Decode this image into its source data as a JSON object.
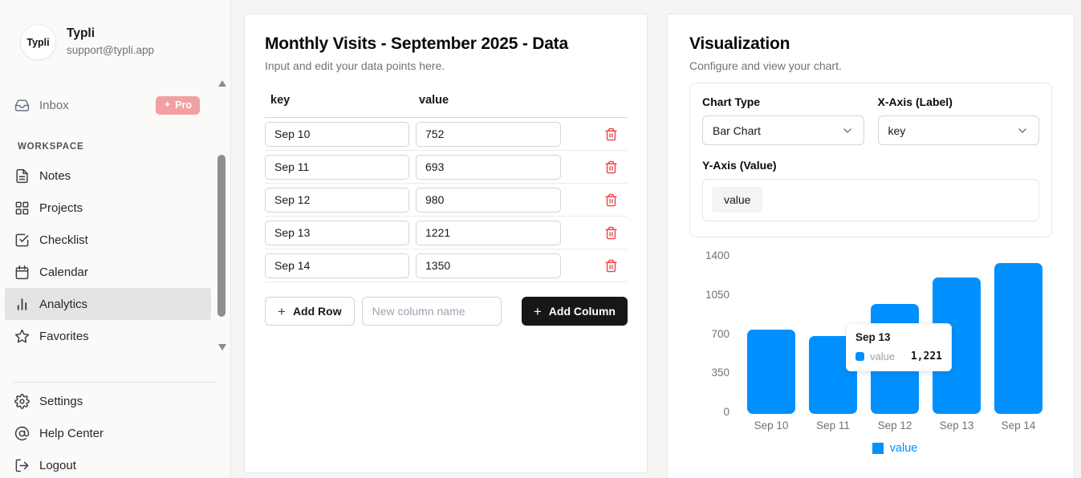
{
  "sidebar": {
    "user": {
      "avatar_text": "Typli",
      "name": "Typli",
      "email": "support@typli.app"
    },
    "inbox": {
      "label": "Inbox",
      "badge": "Pro",
      "badge_icon": "sparkles-icon",
      "badge_color": "#f1a1a1"
    },
    "section_label": "WORKSPACE",
    "items": [
      {
        "label": "Notes",
        "icon": "file-text-icon",
        "active": false
      },
      {
        "label": "Projects",
        "icon": "grid-icon",
        "active": false
      },
      {
        "label": "Checklist",
        "icon": "check-square-icon",
        "active": false
      },
      {
        "label": "Calendar",
        "icon": "calendar-icon",
        "active": false
      },
      {
        "label": "Analytics",
        "icon": "bar-chart-icon",
        "active": true
      },
      {
        "label": "Favorites",
        "icon": "star-icon",
        "active": false
      }
    ],
    "footer_items": [
      {
        "label": "Settings",
        "icon": "gear-icon"
      },
      {
        "label": "Help Center",
        "icon": "at-circle-icon"
      },
      {
        "label": "Logout",
        "icon": "logout-icon"
      }
    ]
  },
  "data_panel": {
    "title": "Monthly Visits - September 2025 - Data",
    "subtitle": "Input and edit your data points here.",
    "columns": {
      "key": "key",
      "value": "value"
    },
    "rows": [
      {
        "key": "Sep 10",
        "value": "752"
      },
      {
        "key": "Sep 11",
        "value": "693"
      },
      {
        "key": "Sep 12",
        "value": "980"
      },
      {
        "key": "Sep 13",
        "value": "1221"
      },
      {
        "key": "Sep 14",
        "value": "1350"
      }
    ],
    "add_row": {
      "icon": "+",
      "label": "Add Row"
    },
    "new_column_placeholder": "New column name",
    "add_column": {
      "icon": "+",
      "label": "Add Column"
    }
  },
  "viz_panel": {
    "title": "Visualization",
    "subtitle": "Configure and view your chart.",
    "chart_type": {
      "label": "Chart Type",
      "value": "Bar Chart"
    },
    "x_axis": {
      "label": "X-Axis (Label)",
      "value": "key"
    },
    "y_axis": {
      "label": "Y-Axis (Value)",
      "chip": "value"
    },
    "tooltip": {
      "title": "Sep 13",
      "series": "value",
      "value": "1,221"
    },
    "legend_label": "value"
  },
  "chart_data": {
    "type": "bar",
    "title": "",
    "categories": [
      "Sep 10",
      "Sep 11",
      "Sep 12",
      "Sep 13",
      "Sep 14"
    ],
    "series": [
      {
        "name": "value",
        "values": [
          752,
          693,
          980,
          1221,
          1350
        ]
      }
    ],
    "yticks": [
      0,
      350,
      700,
      1050,
      1400
    ],
    "ylim": [
      0,
      1400
    ],
    "grid": false,
    "legend_position": "bottom",
    "bar_color": "#0090ff"
  },
  "colors": {
    "accent_blue": "#0090ff",
    "danger_red": "#ef4444",
    "pro_badge": "#f1a1a1",
    "dark_button": "#171717"
  }
}
